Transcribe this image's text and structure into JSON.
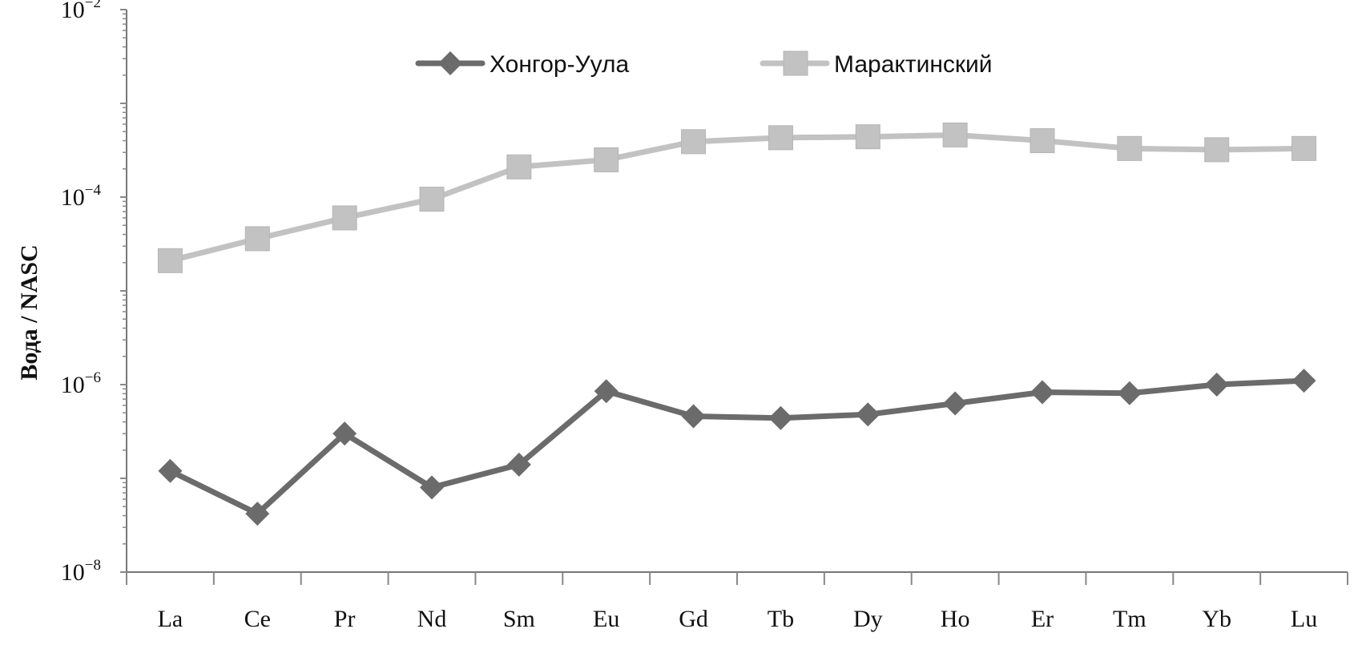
{
  "chart_data": {
    "type": "line",
    "title": "",
    "xlabel": "",
    "ylabel": "Вода / NASC",
    "yscale": "log",
    "ylim": [
      1e-08,
      0.01
    ],
    "categories": [
      "La",
      "Ce",
      "Pr",
      "Nd",
      "Sm",
      "Eu",
      "Gd",
      "Tb",
      "Dy",
      "Ho",
      "Er",
      "Tm",
      "Yb",
      "Lu"
    ],
    "y_ticks": [
      {
        "base": "10",
        "exp": "−8",
        "value": 1e-08
      },
      {
        "base": "10",
        "exp": "−6",
        "value": 1e-06
      },
      {
        "base": "10",
        "exp": "−4",
        "value": 0.0001
      },
      {
        "base": "10",
        "exp": "−2",
        "value": 0.01
      }
    ],
    "grid": false,
    "legend_position": "top-center",
    "series": [
      {
        "name": "Хонгор-Уула",
        "color": "#6b6b6b",
        "marker": "diamond",
        "values": [
          1.2e-07,
          4.2e-08,
          3e-07,
          8e-08,
          1.4e-07,
          8.5e-07,
          4.6e-07,
          4.4e-07,
          4.8e-07,
          6.3e-07,
          8.3e-07,
          8.1e-07,
          1e-06,
          1.1e-06
        ]
      },
      {
        "name": "Марактинский",
        "color": "#c2c2c2",
        "marker": "square",
        "values": [
          2.1e-05,
          3.6e-05,
          6e-05,
          9.5e-05,
          0.00021,
          0.00025,
          0.00039,
          0.00043,
          0.00044,
          0.00046,
          0.0004,
          0.00033,
          0.00032,
          0.00033
        ]
      }
    ]
  }
}
